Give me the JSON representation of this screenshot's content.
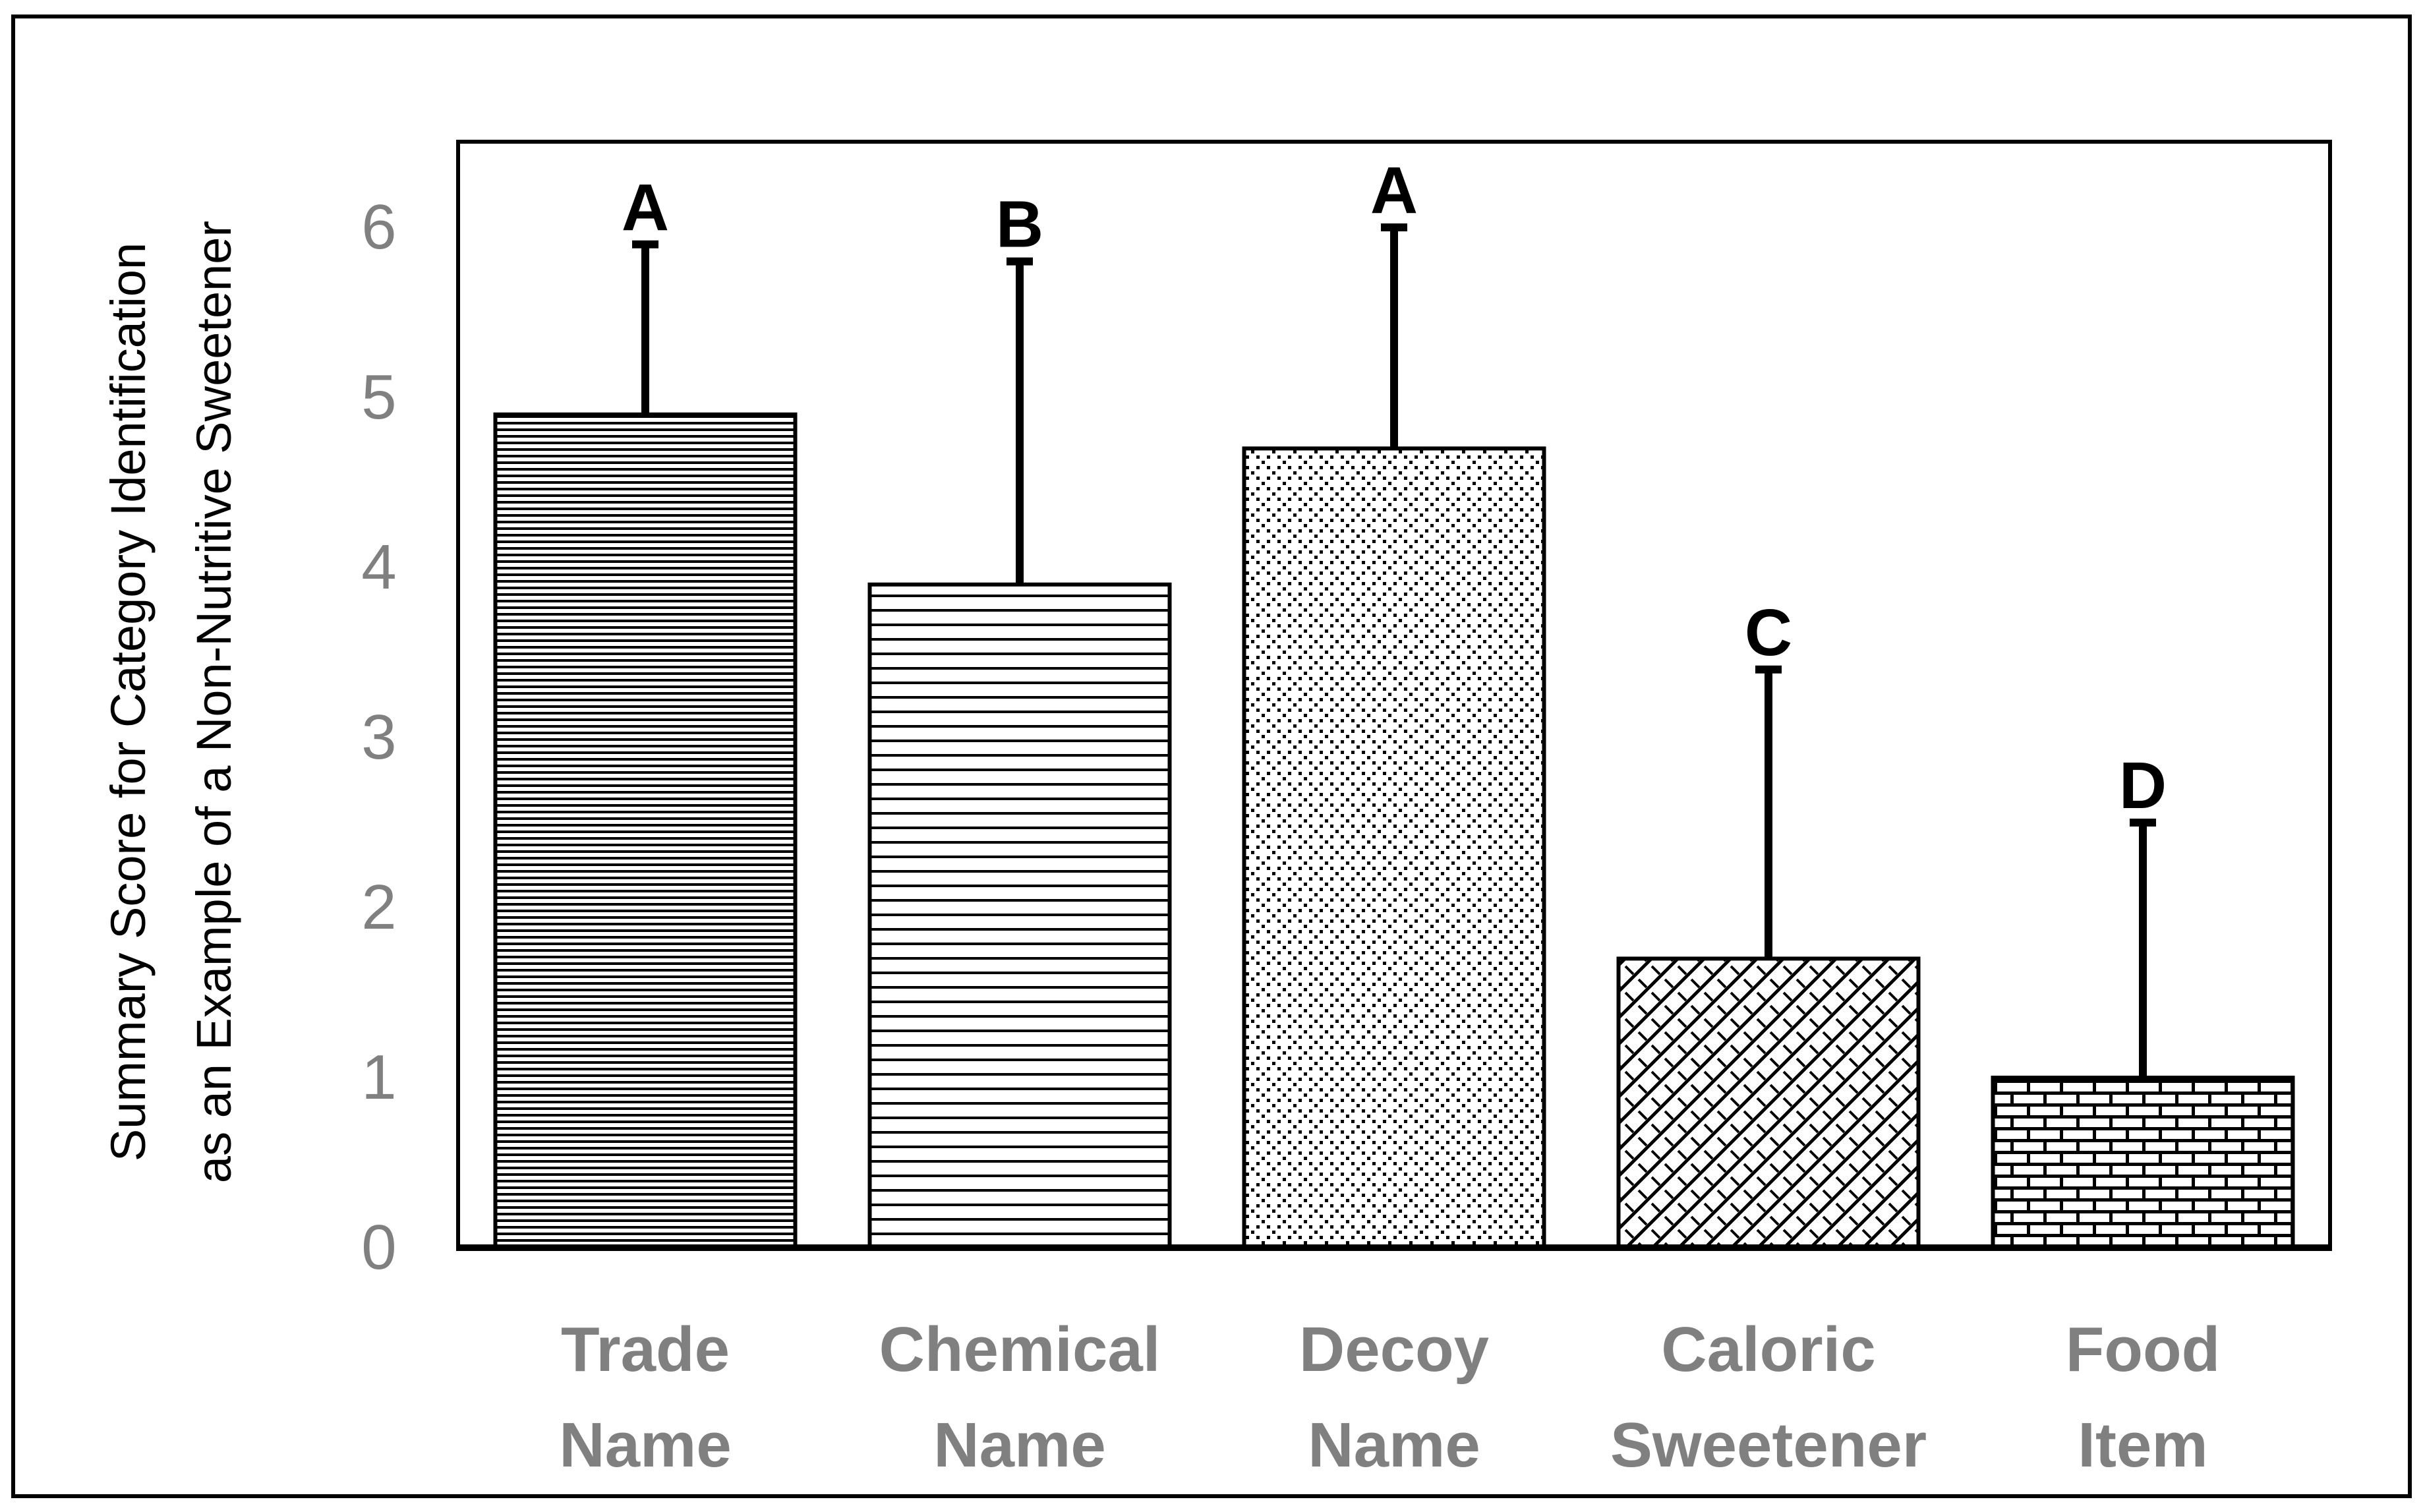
{
  "chart_data": {
    "type": "bar",
    "title": "",
    "xlabel": "",
    "ylabel_lines": [
      "Summary Score for Category Identification",
      "as an Example of a Non-Nutritive Sweetener"
    ],
    "ylim": [
      0,
      6.5
    ],
    "yticks": [
      "0",
      "1",
      "2",
      "3",
      "4",
      "5",
      "6"
    ],
    "grid": false,
    "categories": [
      {
        "line1": "Trade",
        "line2": "Name"
      },
      {
        "line1": "Chemical",
        "line2": "Name"
      },
      {
        "line1": "Decoy",
        "line2": "Name"
      },
      {
        "line1": "Caloric",
        "line2": "Sweetener"
      },
      {
        "line1": "Food",
        "line2": "Item"
      }
    ],
    "values": [
      4.9,
      3.9,
      4.7,
      1.7,
      1.0
    ],
    "error_upper": [
      5.9,
      5.8,
      6.0,
      3.4,
      2.5
    ],
    "significance_letters": [
      "A",
      "B",
      "A",
      "C",
      "D"
    ],
    "patterns": [
      "dense-horizontal-lines",
      "horizontal-lines",
      "dots",
      "diagonal-weave",
      "bricks"
    ],
    "colors": {
      "axis": "#000000",
      "tick_text": "#808080",
      "bar_fill": "#ffffff",
      "ink": "#000000"
    }
  }
}
